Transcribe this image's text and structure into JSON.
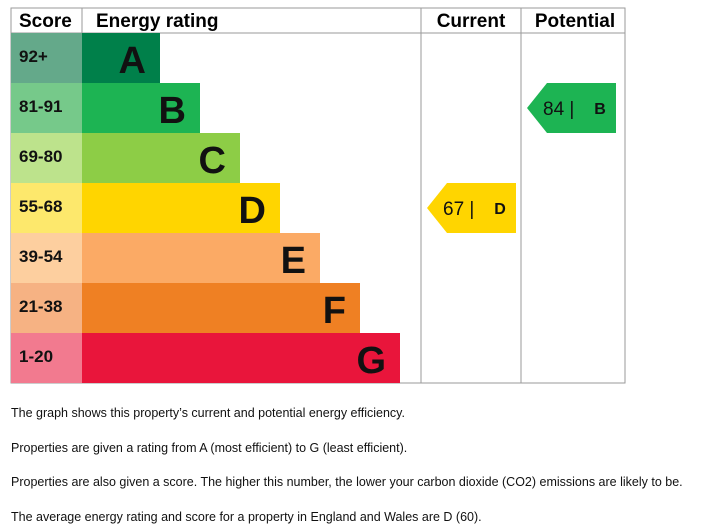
{
  "headers": {
    "score": "Score",
    "rating": "Energy rating",
    "current": "Current",
    "potential": "Potential"
  },
  "chart_data": {
    "type": "bar",
    "bands": [
      {
        "letter": "A",
        "range": "92+",
        "score_color": "#64a98a",
        "bar_color": "#00804a"
      },
      {
        "letter": "B",
        "range": "81-91",
        "score_color": "#76c98a",
        "bar_color": "#1db453"
      },
      {
        "letter": "C",
        "range": "69-80",
        "score_color": "#bde38c",
        "bar_color": "#8dcd46"
      },
      {
        "letter": "D",
        "range": "55-68",
        "score_color": "#fde86c",
        "bar_color": "#ffd500"
      },
      {
        "letter": "E",
        "range": "39-54",
        "score_color": "#fdcf9f",
        "bar_color": "#fbaa65"
      },
      {
        "letter": "F",
        "range": "21-38",
        "score_color": "#f6b283",
        "bar_color": "#ef8023"
      },
      {
        "letter": "G",
        "range": "1-20",
        "score_color": "#f27a8f",
        "bar_color": "#e9153b"
      }
    ],
    "current": {
      "score": 67,
      "letter": "D",
      "label": "67 |",
      "color": "#ffd500"
    },
    "potential": {
      "score": 84,
      "letter": "B",
      "label": "84 |",
      "color": "#1db453"
    }
  },
  "notes": [
    "The graph shows this property’s current and potential energy efficiency.",
    "Properties are given a rating from A (most efficient) to G (least efficient).",
    "Properties are also given a score. The higher this number, the lower your carbon dioxide (CO2) emissions are likely to be.",
    "The average energy rating and score for a property in England and Wales are D (60)."
  ]
}
